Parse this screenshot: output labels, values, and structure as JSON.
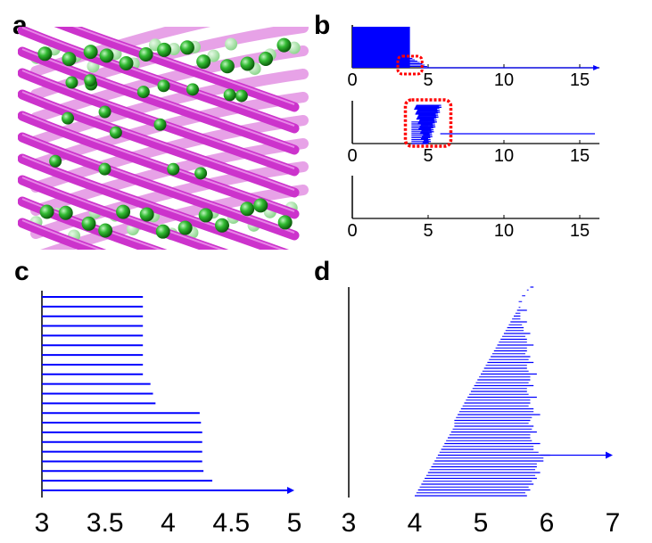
{
  "panels": {
    "a": {
      "label": "a"
    },
    "b": {
      "label": "b"
    },
    "c": {
      "label": "c"
    },
    "d": {
      "label": "d"
    }
  },
  "colors": {
    "bars": "#0000ff",
    "highlight": "#ff0000",
    "strand": "#cc33cc",
    "sphere": "#22aa22"
  },
  "illustration": {
    "icon": "beta-barrel-protein-structure"
  },
  "chart_data": [
    {
      "panel": "b-top",
      "type": "bar",
      "xlim": [
        0,
        16.3
      ],
      "xticks": [
        "0",
        "5",
        "10",
        "15"
      ],
      "block_x_range": [
        0,
        3.8
      ],
      "tail_x_range": [
        3.2,
        4.5
      ],
      "arrow_line_to": 16.3,
      "highlight_box_x": [
        3.0,
        4.6
      ]
    },
    {
      "panel": "b-middle",
      "type": "bar",
      "xlim": [
        0,
        16.3
      ],
      "xticks": [
        "0",
        "5",
        "10",
        "15"
      ],
      "cluster_x_range": [
        3.8,
        6.0
      ],
      "line_to": 16.0,
      "highlight_box_x": [
        3.5,
        6.5
      ]
    },
    {
      "panel": "b-bottom",
      "type": "bar",
      "xlim": [
        0,
        16.3
      ],
      "xticks": [
        "0",
        "5",
        "10",
        "15"
      ],
      "values": []
    },
    {
      "panel": "c",
      "type": "bar",
      "orientation": "horizontal",
      "xlim": [
        3,
        5
      ],
      "xticks": [
        "3",
        "3.5",
        "4",
        "4.5",
        "5"
      ],
      "values": [
        3.8,
        3.8,
        3.8,
        3.8,
        3.8,
        3.8,
        3.8,
        3.8,
        3.8,
        3.86,
        3.88,
        3.9,
        4.25,
        4.26,
        4.27,
        4.27,
        4.27,
        4.27,
        4.28,
        4.35,
        5.0
      ],
      "arrow_last": true
    },
    {
      "panel": "d",
      "type": "bar",
      "orientation": "horizontal",
      "xlim": [
        3,
        7
      ],
      "xticks": [
        "3",
        "4",
        "5",
        "6",
        "7"
      ],
      "left_x_from_bottom": [
        4.0,
        4.05,
        4.1,
        4.15,
        4.2,
        4.25,
        4.3,
        4.35,
        4.4,
        4.45,
        4.5,
        4.55,
        4.6,
        4.6,
        4.65,
        4.7,
        4.75,
        4.8,
        4.85,
        4.9,
        4.95,
        5.0,
        5.05,
        5.1,
        5.15,
        5.2,
        5.25,
        5.3,
        5.35,
        5.4,
        5.45,
        5.5,
        5.55,
        5.6,
        5.65,
        5.7,
        5.75
      ],
      "right_x_from_bottom": [
        5.7,
        5.75,
        5.8,
        5.85,
        5.9,
        5.85,
        5.95,
        6.05,
        5.8,
        5.9,
        5.75,
        5.85,
        5.8,
        5.75,
        5.9,
        5.8,
        5.75,
        5.85,
        5.7,
        5.8,
        5.75,
        5.85,
        5.7,
        5.8,
        5.75,
        5.7,
        5.8,
        5.7,
        5.75,
        5.65,
        5.7,
        5.6,
        5.7,
        5.6,
        5.65,
        5.7,
        5.8
      ],
      "arrow_row_from_bottom": 7,
      "arrow_to": 7.0
    }
  ]
}
